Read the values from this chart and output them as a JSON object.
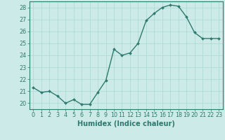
{
  "x": [
    0,
    1,
    2,
    3,
    4,
    5,
    6,
    7,
    8,
    9,
    10,
    11,
    12,
    13,
    14,
    15,
    16,
    17,
    18,
    19,
    20,
    21,
    22,
    23
  ],
  "y": [
    21.3,
    20.9,
    21.0,
    20.6,
    20.0,
    20.3,
    19.9,
    19.9,
    20.9,
    21.9,
    24.5,
    24.0,
    24.2,
    25.0,
    26.9,
    27.5,
    28.0,
    28.2,
    28.1,
    27.2,
    25.9,
    25.4,
    25.4,
    25.4
  ],
  "line_color": "#2d7a6e",
  "marker": "D",
  "marker_size": 2.0,
  "linewidth": 1.0,
  "xlabel": "Humidex (Indice chaleur)",
  "xlim": [
    -0.5,
    23.5
  ],
  "ylim": [
    19.5,
    28.5
  ],
  "yticks": [
    20,
    21,
    22,
    23,
    24,
    25,
    26,
    27,
    28
  ],
  "xticks": [
    0,
    1,
    2,
    3,
    4,
    5,
    6,
    7,
    8,
    9,
    10,
    11,
    12,
    13,
    14,
    15,
    16,
    17,
    18,
    19,
    20,
    21,
    22,
    23
  ],
  "bg_color": "#cceae8",
  "grid_color": "#aad8d5",
  "tick_label_fontsize": 5.8,
  "xlabel_fontsize": 7.0
}
